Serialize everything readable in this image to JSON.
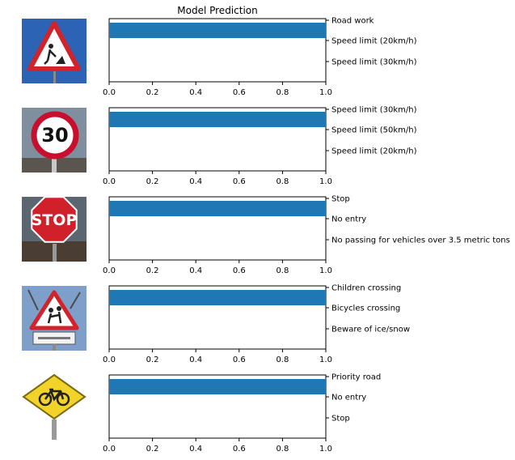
{
  "figure": {
    "title": "Model Prediction"
  },
  "chart_data": [
    {
      "type": "bar",
      "orientation": "horizontal",
      "image": "road-work-sign",
      "categories": [
        "Road work",
        "Speed limit (20km/h)",
        "Speed limit (30km/h)"
      ],
      "values": [
        1.0,
        0.0,
        0.0
      ],
      "xlim": [
        0.0,
        1.0
      ],
      "xticks": [
        "0.0",
        "0.2",
        "0.4",
        "0.6",
        "0.8",
        "1.0"
      ],
      "bar_color": "#1f77b4"
    },
    {
      "type": "bar",
      "orientation": "horizontal",
      "image": "speed-limit-30-sign",
      "categories": [
        "Speed limit (30km/h)",
        "Speed limit (50km/h)",
        "Speed limit (20km/h)"
      ],
      "values": [
        1.0,
        0.0,
        0.0
      ],
      "xlim": [
        0.0,
        1.0
      ],
      "xticks": [
        "0.0",
        "0.2",
        "0.4",
        "0.6",
        "0.8",
        "1.0"
      ],
      "bar_color": "#1f77b4"
    },
    {
      "type": "bar",
      "orientation": "horizontal",
      "image": "stop-sign",
      "image_text": "STOP",
      "categories": [
        "Stop",
        "No entry",
        "No passing for vehicles over 3.5 metric tons"
      ],
      "values": [
        1.0,
        0.0,
        0.0
      ],
      "xlim": [
        0.0,
        1.0
      ],
      "xticks": [
        "0.0",
        "0.2",
        "0.4",
        "0.6",
        "0.8",
        "1.0"
      ],
      "bar_color": "#1f77b4"
    },
    {
      "type": "bar",
      "orientation": "horizontal",
      "image": "children-crossing-sign",
      "categories": [
        "Children crossing",
        "Bicycles crossing",
        "Beware of ice/snow"
      ],
      "values": [
        1.0,
        0.0,
        0.0
      ],
      "xlim": [
        0.0,
        1.0
      ],
      "xticks": [
        "0.0",
        "0.2",
        "0.4",
        "0.6",
        "0.8",
        "1.0"
      ],
      "bar_color": "#1f77b4"
    },
    {
      "type": "bar",
      "orientation": "horizontal",
      "image": "bicycle-diamond-sign",
      "categories": [
        "Priority road",
        "No entry",
        "Stop"
      ],
      "values": [
        1.0,
        0.0,
        0.0
      ],
      "xlim": [
        0.0,
        1.0
      ],
      "xticks": [
        "0.0",
        "0.2",
        "0.4",
        "0.6",
        "0.8",
        "1.0"
      ],
      "bar_color": "#1f77b4"
    }
  ]
}
